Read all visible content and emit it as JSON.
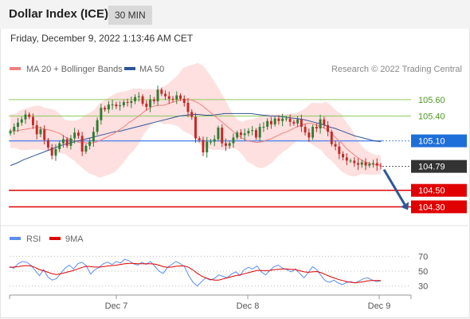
{
  "header": {
    "title": "Dollar Index (ICE)",
    "period": "30 MIN"
  },
  "datetime": "Friday, December 9, 2022 1:13:46 AM CET",
  "legend": {
    "ma20": {
      "label": "MA 20 + Bollinger Bands",
      "color": "#f08080"
    },
    "ma50": {
      "label": "MA 50",
      "color": "#2f5597"
    },
    "copyright": "Research © 2022 Trading Central"
  },
  "colors": {
    "up": "#2e7d32",
    "down": "#c62828",
    "band": "#fde0df",
    "resistance": "#8fcb5a",
    "current": "#5b8def",
    "support": "#e00000",
    "arrow": "#2f5597"
  },
  "chart_data": [
    {
      "type": "candlestick",
      "ylim": [
        104.12,
        105.84
      ],
      "x_ticks": [
        "Dec 7",
        "Dec 8",
        "Dec 9"
      ],
      "levels": [
        {
          "value": 105.6,
          "label": "105.60",
          "kind": "resistance"
        },
        {
          "value": 105.4,
          "label": "105.40",
          "kind": "resistance"
        },
        {
          "value": 105.1,
          "label": "105.10",
          "kind": "pivot"
        },
        {
          "value": 104.79,
          "label": "104.79",
          "kind": "last"
        },
        {
          "value": 104.5,
          "label": "104.50",
          "kind": "support"
        },
        {
          "value": 104.3,
          "label": "104.30",
          "kind": "support"
        }
      ],
      "close": [
        105.22,
        105.27,
        105.32,
        105.36,
        105.42,
        105.39,
        105.29,
        105.18,
        105.24,
        105.11,
        105.02,
        104.92,
        105.0,
        105.07,
        105.12,
        105.04,
        105.13,
        105.2,
        105.16,
        104.97,
        105.04,
        105.09,
        105.21,
        105.35,
        105.5,
        105.48,
        105.54,
        105.54,
        105.52,
        105.53,
        105.57,
        105.56,
        105.58,
        105.63,
        105.64,
        105.55,
        105.51,
        105.6,
        105.58,
        105.72,
        105.67,
        105.64,
        105.61,
        105.6,
        105.65,
        105.61,
        105.56,
        105.45,
        105.39,
        105.13,
        105.11,
        104.96,
        105.09,
        105.09,
        105.12,
        105.26,
        105.07,
        105.04,
        105.07,
        105.14,
        105.2,
        105.17,
        105.19,
        105.22,
        105.23,
        105.14,
        105.27,
        105.27,
        105.34,
        105.3,
        105.37,
        105.34,
        105.37,
        105.37,
        105.33,
        105.31,
        105.36,
        105.27,
        105.2,
        105.14,
        105.27,
        105.25,
        105.36,
        105.29,
        105.21,
        105.06,
        105.03,
        104.94,
        104.9,
        104.86,
        104.86,
        104.83,
        104.81,
        104.84,
        104.8,
        104.82,
        104.83,
        104.8,
        104.79
      ],
      "ma20": [
        105.22,
        105.22,
        105.23,
        105.24,
        105.25,
        105.26,
        105.26,
        105.24,
        105.23,
        105.21,
        105.19,
        105.15,
        105.12,
        105.1,
        105.08,
        105.08,
        105.07,
        105.08,
        105.1,
        105.13,
        105.16,
        105.19,
        105.23,
        105.27,
        105.32,
        105.36,
        105.4,
        105.45,
        105.49,
        105.52,
        105.53,
        105.53,
        105.55,
        105.57,
        105.59,
        105.6,
        105.6,
        105.59,
        105.56,
        105.52,
        105.47,
        105.42,
        105.37,
        105.32,
        105.27,
        105.22,
        105.17,
        105.13,
        105.1,
        105.09,
        105.08,
        105.09,
        105.11,
        105.13,
        105.16,
        105.19,
        105.21,
        105.24,
        105.27,
        105.29,
        105.31,
        105.31,
        105.29,
        105.27,
        105.24,
        105.19,
        105.13,
        105.08,
        105.01,
        104.96,
        104.91,
        104.87,
        104.84,
        104.82,
        104.81,
        104.81
      ],
      "ma50": [
        104.8,
        104.83,
        104.87,
        104.9,
        104.93,
        104.96,
        104.99,
        105.02,
        105.05,
        105.07,
        105.09,
        105.11,
        105.13,
        105.15,
        105.17,
        105.19,
        105.21,
        105.22,
        105.24,
        105.26,
        105.28,
        105.3,
        105.32,
        105.34,
        105.36,
        105.38,
        105.4,
        105.41,
        105.42,
        105.42,
        105.41,
        105.41,
        105.42,
        105.43,
        105.43,
        105.43,
        105.43,
        105.43,
        105.42,
        105.41,
        105.4,
        105.4,
        105.39,
        105.38,
        105.37,
        105.36,
        105.34,
        105.32,
        105.3,
        105.27,
        105.25,
        105.22,
        105.19,
        105.16,
        105.14,
        105.12,
        105.1,
        105.09
      ]
    },
    {
      "type": "line",
      "name": "RSI",
      "ylim": [
        20,
        80
      ],
      "y_ticks": [
        "70",
        "50",
        "30"
      ],
      "legend": [
        {
          "label": "RSI",
          "color": "#5b8def"
        },
        {
          "label": "9MA",
          "color": "#e00000"
        }
      ],
      "rsi": [
        56,
        54,
        60,
        63,
        62,
        58,
        51,
        44,
        52,
        42,
        38,
        40,
        47,
        54,
        58,
        53,
        60,
        62,
        57,
        46,
        52,
        55,
        60,
        62,
        59,
        63,
        61,
        66,
        64,
        60,
        58,
        62,
        59,
        63,
        57,
        50,
        47,
        55,
        59,
        63,
        60,
        56,
        44,
        35,
        30,
        36,
        41,
        38,
        40,
        45,
        43,
        41,
        46,
        49,
        44,
        52,
        55,
        53,
        57,
        49,
        45,
        51,
        56,
        58,
        54,
        52,
        49,
        53,
        47,
        41,
        48,
        56,
        52,
        44,
        37,
        35,
        38,
        34,
        32,
        35,
        36,
        34,
        37,
        40,
        41,
        38,
        36,
        37
      ],
      "rsi_ma": [
        55,
        55.5,
        56,
        57,
        57.5,
        57,
        55,
        52,
        50.5,
        48.5,
        46.5,
        45.5,
        46.5,
        48,
        49.5,
        51,
        53,
        55,
        56.5,
        56,
        55.5,
        55.5,
        56,
        57,
        57.5,
        58,
        59,
        60,
        60.5,
        60.5,
        60,
        60,
        60,
        60,
        59.5,
        58,
        56,
        55,
        55.5,
        56.5,
        57,
        57,
        55,
        51.5,
        47,
        43.5,
        41,
        39,
        38,
        38,
        39.5,
        41,
        42.5,
        44,
        45,
        46.5,
        48,
        49.5,
        51,
        51,
        50.5,
        51,
        52,
        52.5,
        53,
        53,
        52.5,
        52,
        50.5,
        49,
        48.5,
        49,
        49.5,
        48,
        45.5,
        43,
        41,
        39,
        37.5,
        36,
        35,
        34.5,
        35,
        36,
        37,
        37.5,
        37.5,
        37.5
      ],
      "ylabel": ""
    }
  ]
}
